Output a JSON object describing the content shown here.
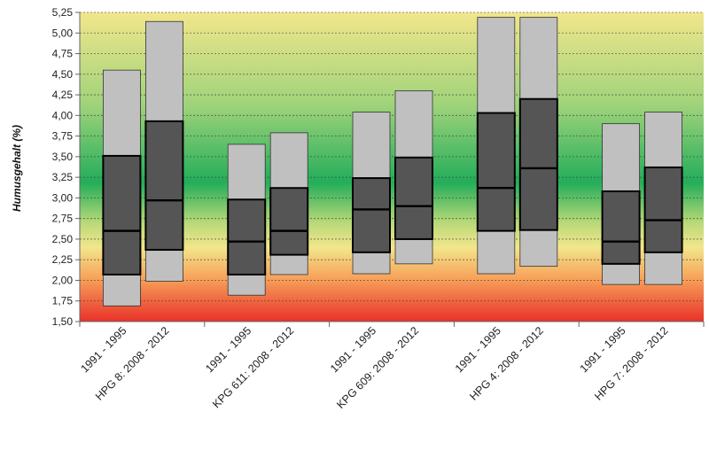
{
  "chart_data": {
    "type": "box",
    "title": "",
    "xlabel": "",
    "ylabel": "Humusgehalt  (%)",
    "ylim": [
      1.5,
      5.25
    ],
    "ytick_labels": [
      "1,50",
      "1,75",
      "2,00",
      "2,25",
      "2,50",
      "2,75",
      "3,00",
      "3,25",
      "3,50",
      "3,75",
      "4,00",
      "4,25",
      "4,50",
      "4,75",
      "5,00",
      "5,25"
    ],
    "grid": true,
    "legend": "none",
    "colors": {
      "whisker_box": "#c0c0c0",
      "iqr_box": "#555555",
      "box_border": "#000000",
      "band_red": "#e8312a",
      "band_orange": "#f7a25a",
      "band_yellow": "#f2e68c",
      "band_green": "#23ad5a"
    },
    "groups": [
      {
        "label": "HPG 8",
        "boxes": [
          {
            "label": "1991 - 1995",
            "min": 1.69,
            "q1": 2.07,
            "median": 2.6,
            "q3": 3.51,
            "max": 4.55
          },
          {
            "label": "HPG 8: 2008 - 2012",
            "min": 1.99,
            "q1": 2.37,
            "median": 2.97,
            "q3": 3.93,
            "max": 5.14
          }
        ]
      },
      {
        "label": "KPG 611",
        "boxes": [
          {
            "label": "1991 - 1995",
            "min": 1.82,
            "q1": 2.07,
            "median": 2.47,
            "q3": 2.98,
            "max": 3.65
          },
          {
            "label": "KPG  611: 2008 - 2012",
            "min": 2.07,
            "q1": 2.31,
            "median": 2.6,
            "q3": 3.12,
            "max": 3.79
          }
        ]
      },
      {
        "label": "KPG 609",
        "boxes": [
          {
            "label": "1991 - 1995",
            "min": 2.08,
            "q1": 2.34,
            "median": 2.86,
            "q3": 3.24,
            "max": 4.04
          },
          {
            "label": "KPG 609: 2008 - 2012",
            "min": 2.2,
            "q1": 2.5,
            "median": 2.9,
            "q3": 3.49,
            "max": 4.3
          }
        ]
      },
      {
        "label": "HPG 4",
        "boxes": [
          {
            "label": "1991 - 1995",
            "min": 2.08,
            "q1": 2.6,
            "median": 3.12,
            "q3": 4.03,
            "max": 5.19
          },
          {
            "label": "HPG 4: 2008 - 2012",
            "min": 2.17,
            "q1": 2.61,
            "median": 3.36,
            "q3": 4.2,
            "max": 5.19
          }
        ]
      },
      {
        "label": "HPG 7",
        "boxes": [
          {
            "label": "1991 - 1995",
            "min": 1.95,
            "q1": 2.2,
            "median": 2.47,
            "q3": 3.08,
            "max": 3.9
          },
          {
            "label": "HPG 7: 2008 - 2012",
            "min": 1.95,
            "q1": 2.34,
            "median": 2.73,
            "q3": 3.37,
            "max": 4.04
          }
        ]
      }
    ]
  }
}
